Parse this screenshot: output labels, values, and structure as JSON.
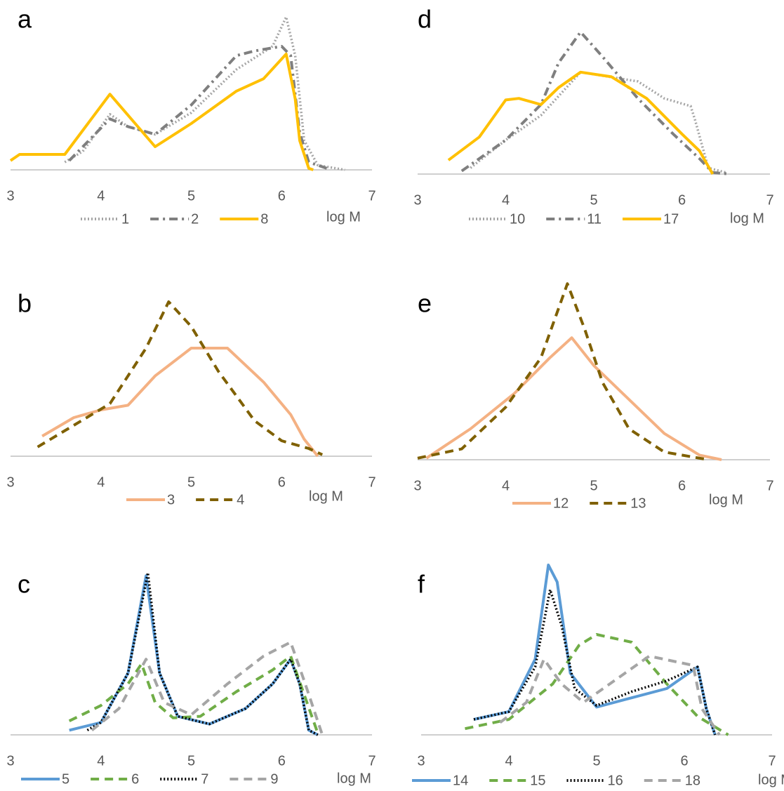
{
  "chart_data": [
    {
      "type": "line",
      "title": "a",
      "x_label": "log M",
      "xlim": [
        3,
        7
      ],
      "xticks": [
        3,
        4,
        5,
        6,
        7
      ],
      "ylim": [
        0,
        120
      ],
      "series": [
        {
          "name": "1",
          "color": "#A5A5A5",
          "style": "dotted",
          "x": [
            3.6,
            3.8,
            4.1,
            4.3,
            4.6,
            5.0,
            5.5,
            5.9,
            6.05,
            6.15,
            6.25,
            6.4,
            6.7
          ],
          "values": [
            5,
            12,
            36,
            28,
            23,
            37,
            65,
            80,
            99,
            74,
            19,
            3,
            0
          ]
        },
        {
          "name": "2",
          "color": "#7F7F7F",
          "style": "dashdot",
          "x": [
            3.65,
            4.1,
            4.3,
            4.6,
            5.0,
            5.5,
            5.7,
            6.0,
            6.1,
            6.2,
            6.3,
            6.5
          ],
          "values": [
            6,
            33,
            28,
            23,
            42,
            74,
            77,
            80,
            74,
            24,
            5,
            1
          ]
        },
        {
          "name": "8",
          "color": "#FFC000",
          "style": "solid",
          "x": [
            3.0,
            3.1,
            3.6,
            4.1,
            4.6,
            5.0,
            5.5,
            5.8,
            6.05,
            6.15,
            6.2,
            6.3,
            6.35
          ],
          "values": [
            6,
            10,
            10,
            49,
            15,
            30,
            51,
            59,
            75,
            46,
            19,
            1,
            0
          ]
        }
      ]
    },
    {
      "type": "line",
      "title": "b",
      "x_label": "log M",
      "xlim": [
        3,
        7
      ],
      "xticks": [
        3,
        4,
        5,
        6,
        7
      ],
      "ylim": [
        0,
        120
      ],
      "series": [
        {
          "name": "3",
          "color": "#F4B183",
          "style": "solid",
          "x": [
            3.35,
            3.7,
            4.0,
            4.3,
            4.6,
            5.0,
            5.4,
            5.8,
            6.1,
            6.25,
            6.4
          ],
          "values": [
            13,
            25,
            30,
            33,
            52,
            70,
            70,
            48,
            27,
            11,
            0
          ]
        },
        {
          "name": "4",
          "color": "#7F6000",
          "style": "dashed",
          "x": [
            3.3,
            3.7,
            4.1,
            4.5,
            4.75,
            5.0,
            5.3,
            5.7,
            6.0,
            6.3,
            6.45
          ],
          "values": [
            6,
            20,
            34,
            70,
            100,
            84,
            55,
            23,
            10,
            5,
            1
          ]
        }
      ]
    },
    {
      "type": "line",
      "title": "c",
      "x_label": "log M",
      "xlim": [
        3,
        7
      ],
      "xticks": [
        3,
        4,
        5,
        6,
        7
      ],
      "ylim": [
        0,
        120
      ],
      "series": [
        {
          "name": "5",
          "color": "#5B9BD5",
          "style": "solid",
          "x": [
            3.65,
            4.0,
            4.3,
            4.5,
            4.65,
            4.85,
            5.2,
            5.6,
            5.9,
            6.1,
            6.2,
            6.3,
            6.4
          ],
          "values": [
            3,
            8,
            40,
            103,
            40,
            12,
            7,
            17,
            33,
            49,
            33,
            3,
            0
          ]
        },
        {
          "name": "6",
          "color": "#70AD47",
          "style": "dashed",
          "x": [
            3.65,
            4.0,
            4.3,
            4.45,
            4.6,
            4.8,
            5.1,
            5.5,
            5.9,
            6.1,
            6.25,
            6.4
          ],
          "values": [
            9,
            19,
            33,
            46,
            21,
            11,
            12,
            28,
            42,
            51,
            26,
            1
          ]
        },
        {
          "name": "7",
          "color": "#000000",
          "style": "dotted",
          "x": [
            3.85,
            4.0,
            4.3,
            4.52,
            4.65,
            4.85,
            5.2,
            5.6,
            5.9,
            6.1,
            6.2,
            6.3,
            6.4
          ],
          "values": [
            3,
            8,
            40,
            105,
            40,
            12,
            7,
            17,
            33,
            49,
            33,
            3,
            0
          ]
        },
        {
          "name": "9",
          "color": "#A5A5A5",
          "style": "dashed",
          "x": [
            3.9,
            4.2,
            4.5,
            4.7,
            5.0,
            5.4,
            5.8,
            6.1,
            6.25,
            6.45
          ],
          "values": [
            3,
            17,
            49,
            21,
            13,
            33,
            51,
            60,
            35,
            0
          ]
        }
      ]
    },
    {
      "type": "line",
      "title": "d",
      "x_label": "log M",
      "xlim": [
        3,
        7
      ],
      "xticks": [
        3,
        4,
        5,
        6,
        7
      ],
      "ylim": [
        0,
        120
      ],
      "series": [
        {
          "name": "10",
          "color": "#A5A5A5",
          "style": "dotted",
          "x": [
            3.6,
            4.0,
            4.4,
            4.85,
            5.5,
            5.8,
            6.1,
            6.15,
            6.3,
            6.5
          ],
          "values": [
            4,
            22,
            38,
            66,
            60,
            49,
            44,
            35,
            4,
            1
          ]
        },
        {
          "name": "11",
          "color": "#7F7F7F",
          "style": "dashdot",
          "x": [
            3.5,
            4.0,
            4.4,
            4.6,
            4.85,
            5.1,
            5.5,
            5.9,
            6.2,
            6.35,
            6.55
          ],
          "values": [
            2,
            22,
            45,
            72,
            92,
            76,
            49,
            26,
            10,
            1,
            0
          ]
        },
        {
          "name": "17",
          "color": "#FFC000",
          "style": "solid",
          "x": [
            3.35,
            3.7,
            4.0,
            4.15,
            4.4,
            4.6,
            4.85,
            5.2,
            5.6,
            6.0,
            6.2,
            6.35
          ],
          "values": [
            9,
            24,
            48,
            49,
            45,
            56,
            66,
            63,
            49,
            26,
            15,
            0
          ]
        }
      ]
    },
    {
      "type": "line",
      "title": "e",
      "x_label": "log M",
      "xlim": [
        3,
        7
      ],
      "xticks": [
        3,
        4,
        5,
        6,
        7
      ],
      "ylim": [
        0,
        120
      ],
      "series": [
        {
          "name": "12",
          "color": "#F4B183",
          "style": "solid",
          "x": [
            3.1,
            3.6,
            4.1,
            4.5,
            4.75,
            5.0,
            5.4,
            5.8,
            6.2,
            6.45
          ],
          "values": [
            1,
            20,
            43,
            66,
            79,
            61,
            39,
            17,
            3,
            0
          ]
        },
        {
          "name": "13",
          "color": "#7F6000",
          "style": "dashed",
          "x": [
            3.0,
            3.5,
            4.0,
            4.4,
            4.7,
            4.9,
            5.1,
            5.4,
            5.8,
            6.3
          ],
          "values": [
            1,
            7,
            34,
            66,
            114,
            84,
            50,
            20,
            5,
            0
          ]
        }
      ]
    },
    {
      "type": "line",
      "title": "f",
      "x_label": "log M",
      "xlim": [
        3,
        7
      ],
      "xticks": [
        3,
        4,
        5,
        6,
        7
      ],
      "ylim": [
        0,
        120
      ],
      "series": [
        {
          "name": "14",
          "color": "#5B9BD5",
          "style": "solid",
          "x": [
            3.6,
            4.0,
            4.3,
            4.45,
            4.55,
            4.7,
            5.0,
            5.4,
            5.8,
            6.15,
            6.25,
            6.35
          ],
          "values": [
            10,
            15,
            49,
            110,
            99,
            40,
            18,
            24,
            30,
            44,
            17,
            0
          ]
        },
        {
          "name": "15",
          "color": "#70AD47",
          "style": "dashed",
          "x": [
            3.5,
            4.0,
            4.5,
            4.8,
            5.0,
            5.4,
            5.8,
            6.15,
            6.5
          ],
          "values": [
            4,
            10,
            33,
            58,
            65,
            60,
            33,
            12,
            0
          ]
        },
        {
          "name": "16",
          "color": "#000000",
          "style": "dotted",
          "x": [
            3.6,
            4.0,
            4.3,
            4.47,
            4.6,
            4.75,
            5.0,
            5.4,
            5.8,
            6.15,
            6.25,
            6.35
          ],
          "values": [
            10,
            15,
            44,
            94,
            71,
            30,
            19,
            28,
            35,
            44,
            17,
            0
          ]
        },
        {
          "name": "18",
          "color": "#A5A5A5",
          "style": "dashed",
          "x": [
            3.9,
            4.2,
            4.4,
            4.6,
            4.85,
            5.2,
            5.6,
            6.1,
            6.2,
            6.4
          ],
          "values": [
            8,
            21,
            49,
            33,
            21,
            35,
            51,
            45,
            17,
            0
          ]
        }
      ]
    }
  ]
}
